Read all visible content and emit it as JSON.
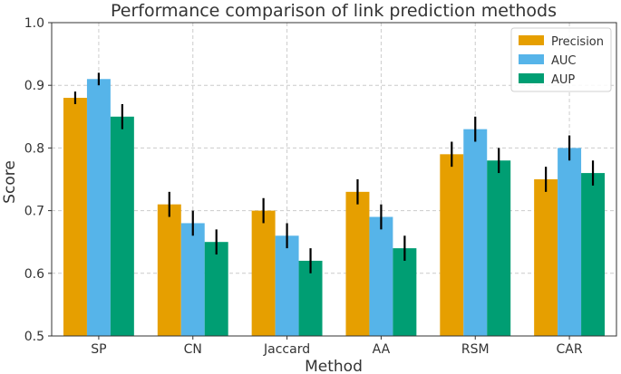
{
  "chart_data": {
    "type": "bar",
    "title": "Performance comparison of link prediction methods",
    "xlabel": "Method",
    "ylabel": "Score",
    "categories": [
      "SP",
      "CN",
      "Jaccard",
      "AA",
      "RSM",
      "CAR"
    ],
    "ylim": [
      0.5,
      1.0
    ],
    "yticks": [
      0.5,
      0.6,
      0.7,
      0.8,
      0.9,
      1.0
    ],
    "ytick_labels": [
      "0.5",
      "0.6",
      "0.7",
      "0.8",
      "0.9",
      "1.0"
    ],
    "grid": true,
    "legend_position": "top-right",
    "series": [
      {
        "name": "Precision",
        "color": "#E69F00",
        "values": [
          0.88,
          0.71,
          0.7,
          0.73,
          0.79,
          0.75
        ],
        "errors": [
          0.01,
          0.02,
          0.02,
          0.02,
          0.02,
          0.02
        ]
      },
      {
        "name": "AUC",
        "color": "#56B4E9",
        "values": [
          0.91,
          0.68,
          0.66,
          0.69,
          0.83,
          0.8
        ],
        "errors": [
          0.01,
          0.02,
          0.02,
          0.02,
          0.02,
          0.02
        ]
      },
      {
        "name": "AUP",
        "color": "#009E73",
        "values": [
          0.85,
          0.65,
          0.62,
          0.64,
          0.78,
          0.76
        ],
        "errors": [
          0.02,
          0.02,
          0.02,
          0.02,
          0.02,
          0.02
        ]
      }
    ]
  }
}
